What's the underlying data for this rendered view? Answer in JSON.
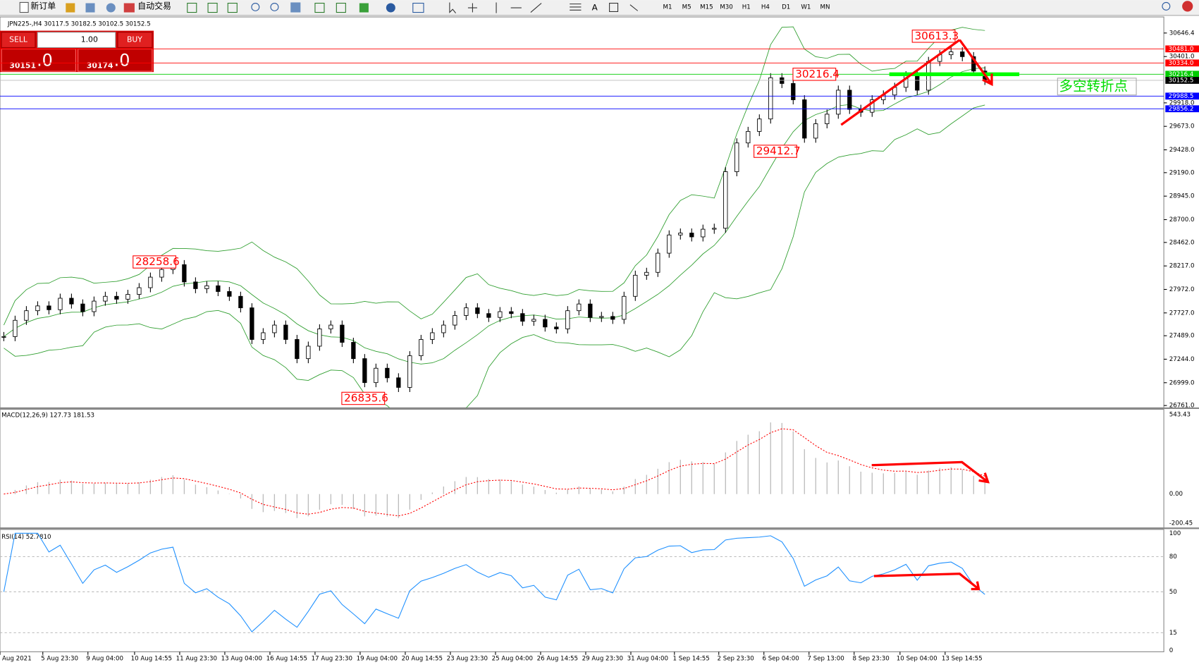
{
  "toolbar": {
    "new_order": "新订单",
    "auto_trading": "自动交易",
    "timeframes": [
      "M1",
      "M5",
      "M15",
      "M30",
      "H1",
      "H4",
      "D1",
      "W1",
      "MN"
    ]
  },
  "chart_header": "JPN225-,H4  30117.5 30182.5 30102.5 30152.5",
  "trade_panel": {
    "sell": "SELL",
    "lot": "1.00",
    "buy": "BUY",
    "bid_main": "30151",
    "bid_frac": ".0",
    "ask_main": "30174",
    "ask_frac": ".0"
  },
  "price_chart": {
    "ylim": [
      26761,
      30646.4
    ],
    "yticks": [
      30646.4,
      {
        "value": 30401,
        "label": "30401.0"
      },
      {
        "value": 29918,
        "label": "29918.0"
      },
      {
        "value": 29673,
        "label": "29673.0"
      },
      {
        "value": 29428,
        "label": "29428.0"
      },
      {
        "value": 29190,
        "label": "29190.0"
      },
      {
        "value": 28945,
        "label": "28945.0"
      },
      {
        "value": 28700,
        "label": "28700.0"
      },
      {
        "value": 28462,
        "label": "28462.0"
      },
      {
        "value": 28217,
        "label": "28217.0"
      },
      {
        "value": 27972,
        "label": "27972.0"
      },
      {
        "value": 27727,
        "label": "27727.0"
      },
      {
        "value": 27489,
        "label": "27489.0"
      },
      {
        "value": 27244,
        "label": "27244.0"
      },
      {
        "value": 26999,
        "label": "26999.0"
      },
      {
        "value": 26761,
        "label": "26761.0"
      }
    ],
    "closes": [
      27480,
      27650,
      27750,
      27800,
      27760,
      27880,
      27820,
      27740,
      27850,
      27900,
      27870,
      27920,
      27990,
      28100,
      28180,
      28230,
      28050,
      27980,
      28010,
      27950,
      27900,
      27780,
      27450,
      27520,
      27600,
      27450,
      27250,
      27380,
      27560,
      27600,
      27420,
      27250,
      27000,
      27150,
      27050,
      26950,
      27280,
      27450,
      27520,
      27600,
      27700,
      27780,
      27720,
      27680,
      27740,
      27720,
      27640,
      27660,
      27580,
      27560,
      27750,
      27820,
      27680,
      27690,
      27660,
      27900,
      28120,
      28150,
      28350,
      28540,
      28560,
      28520,
      28600,
      28610,
      29200,
      29500,
      29620,
      29750,
      30180,
      30120,
      29950,
      29550,
      29700,
      29800,
      30050,
      29850,
      29820,
      29950,
      30000,
      30080,
      30200,
      30050,
      30350,
      30420,
      30450,
      30400,
      30250,
      30152.5
    ],
    "levels": [
      {
        "value": 30481,
        "label": "30481.0",
        "color": "#ff0000"
      },
      {
        "value": 30334,
        "label": "30334.0",
        "color": "#ff0000"
      },
      {
        "value": 30216.4,
        "label": "30216.4",
        "color": "#00cc00"
      },
      {
        "value": 30152.5,
        "label": "30152.5",
        "color": "#000000"
      },
      {
        "value": 29988.5,
        "label": "29988.5",
        "color": "#0000ff"
      },
      {
        "value": 29856.2,
        "label": "29856.2",
        "color": "#0000ff"
      }
    ],
    "annotations": [
      30613.3,
      30216.4,
      29412.7,
      28258.6,
      26835.6
    ],
    "note": "多空转折点"
  },
  "macd": {
    "label": "MACD(12,26,9) 127.73 181.53",
    "ylim": [
      -200.45,
      543.43
    ],
    "yticks": [
      543.43,
      {
        "value": 0,
        "label": "0.00"
      },
      -200.45
    ]
  },
  "rsi": {
    "label": "RSI(14) 52.7810",
    "ylim": [
      0,
      100
    ],
    "yticks": [
      100,
      80,
      50,
      15,
      0
    ]
  },
  "x_axis": [
    "Aug 2021",
    "5 Aug 23:30",
    "9 Aug 04:00",
    "10 Aug 14:55",
    "11 Aug 23:30",
    "13 Aug 04:00",
    "16 Aug 14:55",
    "17 Aug 23:30",
    "19 Aug 04:00",
    "20 Aug 14:55",
    "23 Aug 23:30",
    "25 Aug 04:00",
    "26 Aug 14:55",
    "29 Aug 23:30",
    "31 Aug 04:00",
    "1 Sep 14:55",
    "2 Sep 23:30",
    "6 Sep 04:00",
    "7 Sep 13:00",
    "8 Sep 23:30",
    "10 Sep 04:00",
    "13 Sep 14:55"
  ]
}
